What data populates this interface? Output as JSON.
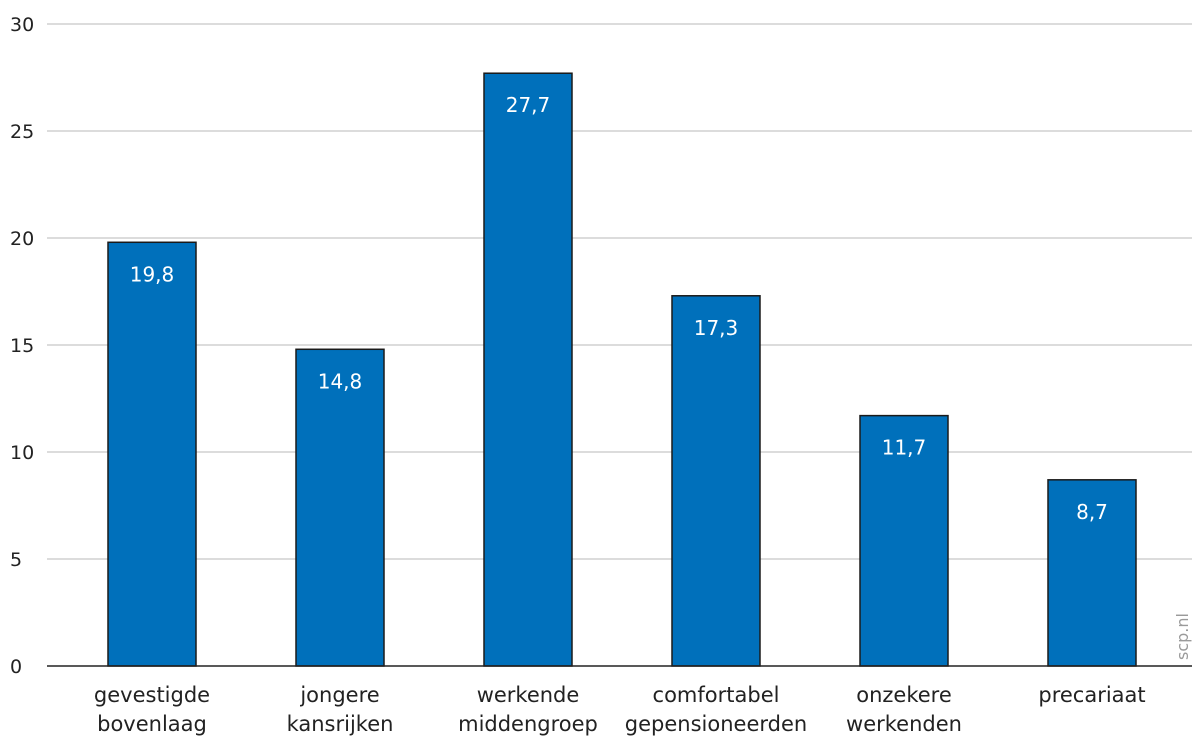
{
  "chart_data": {
    "type": "bar",
    "categories": [
      [
        "gevestigde",
        "bovenlaag"
      ],
      [
        "jongere",
        "kansrijken"
      ],
      [
        "werkende",
        "middengroep"
      ],
      [
        "comfortabel",
        "gepensioneerden"
      ],
      [
        "onzekere",
        "werkenden"
      ],
      [
        "precariaat"
      ]
    ],
    "values": [
      19.8,
      14.8,
      27.7,
      17.3,
      11.7,
      8.7
    ],
    "value_labels": [
      "19,8",
      "14,8",
      "27,7",
      "17,3",
      "11,7",
      "8,7"
    ],
    "yticks": [
      0,
      5,
      10,
      15,
      20,
      25,
      30
    ],
    "ylim": [
      0,
      30
    ],
    "grid": true,
    "bar_color": "#0070bb",
    "title": "",
    "xlabel": "",
    "ylabel": ""
  },
  "watermark": "scp.nl"
}
